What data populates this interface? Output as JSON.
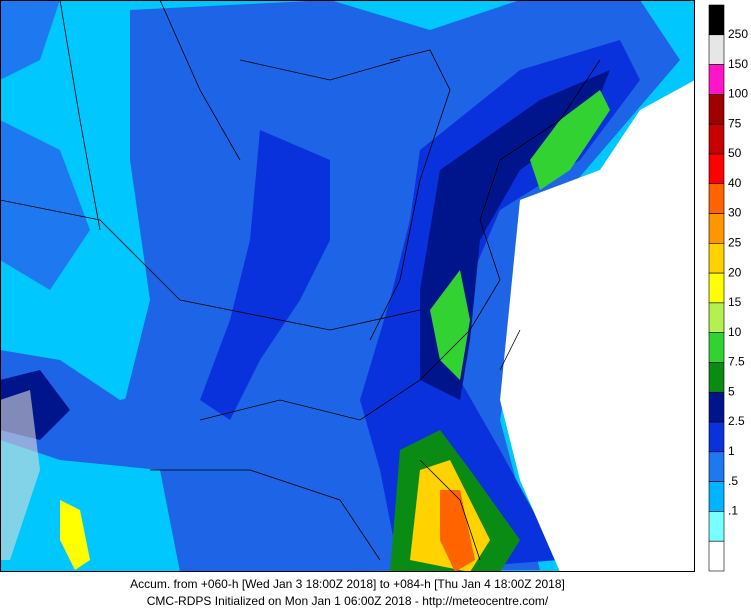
{
  "legend": {
    "colors": [
      "#000000",
      "#e6e6e6",
      "#ff14c8",
      "#a00000",
      "#c80000",
      "#ff0000",
      "#ff6400",
      "#ff9600",
      "#ffd200",
      "#ffff00",
      "#b4f050",
      "#32d232",
      "#0a8c14",
      "#00148c",
      "#0a32dc",
      "#1e78f0",
      "#00b4ff",
      "#78ffff",
      "#ffffff"
    ],
    "labels": [
      "250",
      "150",
      "100",
      "75",
      "50",
      "40",
      "30",
      "25",
      "20",
      "15",
      "10",
      "7.5",
      "5",
      "2.5",
      "1",
      ".5",
      ".1"
    ]
  },
  "caption": {
    "line1": "Accum. from +060-h [Wed Jan 3 18:00Z 2018] to +084-h [Thu Jan 4 18:00Z 2018]",
    "line2": "CMC-RDPS Initialized on Mon Jan 1 06:00Z 2018 - http://meteocentre.com/"
  }
}
